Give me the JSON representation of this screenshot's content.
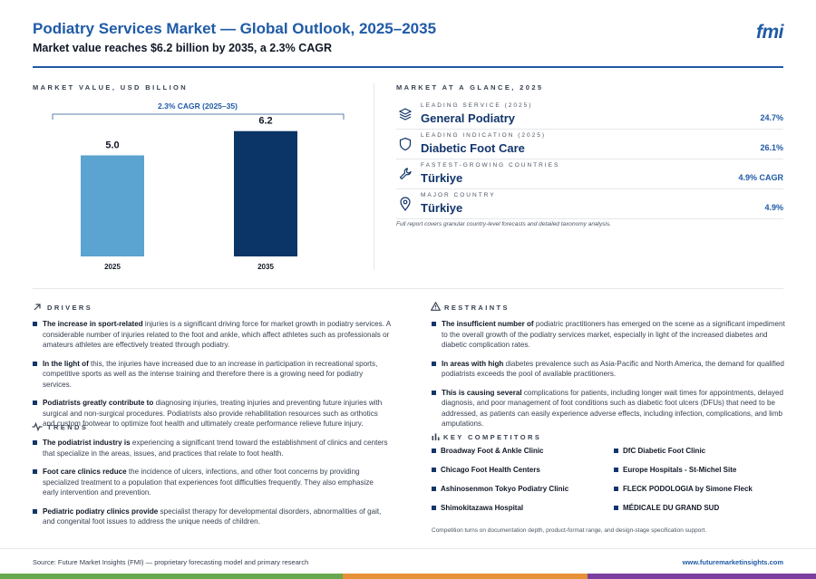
{
  "header": {
    "title": "Podiatry Services Market — Global Outlook, 2025–2035",
    "subtitle": "Market value reaches $6.2 billion by 2035, a 2.3% CAGR",
    "logo": "fmi"
  },
  "sections": {
    "market_value": "MARKET VALUE, USD BILLION",
    "glance": "MARKET AT A GLANCE, 2025",
    "drivers": "DRIVERS",
    "restraints": "RESTRAINTS",
    "trends": "TRENDS",
    "competitors": "KEY COMPETITORS"
  },
  "chart_data": {
    "type": "bar",
    "categories": [
      "2025",
      "2035"
    ],
    "values": [
      5.0,
      6.2
    ],
    "value_labels": [
      "5.0",
      "6.2"
    ],
    "bar_colors": [
      "#5ba3d0",
      "#0b3566"
    ],
    "annotation": "2.3% CAGR (2025–35)",
    "ylim": [
      0,
      6.5
    ],
    "grid": false
  },
  "glance": {
    "items": [
      {
        "label": "LEADING SERVICE (2025)",
        "value": "General Podiatry",
        "stat": "24.7%",
        "icon": "layers-icon"
      },
      {
        "label": "LEADING INDICATION (2025)",
        "value": "Diabetic Foot Care",
        "stat": "26.1%",
        "icon": "shield-icon"
      },
      {
        "label": "FASTEST-GROWING COUNTRIES",
        "value": "Türkiye",
        "stat": "4.9% CAGR",
        "icon": "wrench-icon"
      },
      {
        "label": "MAJOR COUNTRY",
        "value": "Türkiye",
        "stat": "4.9%",
        "icon": "location-pin-icon"
      }
    ],
    "note": "Full report covers granular country-level forecasts and detailed taxonomy analysis."
  },
  "drivers": [
    {
      "lead": "The increase in sport-related",
      "text": " injuries is a significant driving force for market growth in podiatry services. A considerable number of injuries related to the foot and ankle, which affect athletes such as professionals or amateurs athletes are effectively treated through podiatry."
    },
    {
      "lead": "In the light of",
      "text": " this, the injuries have increased due to an increase in participation in recreational sports, competitive sports as well as the intense training and therefore there is a growing need for podiatry services."
    },
    {
      "lead": "Podiatrists greatly contribute to",
      "text": " diagnosing injuries, treating injuries and preventing future injuries with surgical and non-surgical procedures. Podiatrists also provide rehabilitation resources such as orthotics and custom footwear to optimize foot health and ultimately create performance relieve future injury."
    }
  ],
  "trends": [
    {
      "lead": "The podiatrist industry is",
      "text": " experiencing a significant trend toward the establishment of clinics and centers that specialize in the areas, issues, and practices that relate to foot health."
    },
    {
      "lead": "Foot care clinics reduce",
      "text": " the incidence of ulcers, infections, and other foot concerns by providing specialized treatment to a population that experiences foot difficulties frequently. They also emphasize early intervention and prevention."
    },
    {
      "lead": "Pediatric podiatry clinics provide",
      "text": " specialist therapy for developmental disorders, abnormalities of gait, and congenital foot issues to address the unique needs of children."
    }
  ],
  "restraints": [
    {
      "lead": "The insufficient number of",
      "text": " podiatric practitioners has emerged on the scene as a significant impediment to the overall growth of the podiatry services market, especially in light of the increased diabetes and diabetic complication rates."
    },
    {
      "lead": "In areas with high",
      "text": " diabetes prevalence such as Asia-Pacific and North America, the demand for qualified podiatrists exceeds the pool of available practitioners."
    },
    {
      "lead": "This is causing several",
      "text": " complications for patients, including longer wait times for appointments, delayed diagnosis, and poor management of foot conditions such as diabetic foot ulcers (DFUs) that need to be addressed, as patients can easily experience adverse effects, including infection, complications, and limb amputations."
    }
  ],
  "competitors": {
    "items": [
      "Broadway Foot & Ankle Clinic",
      "DfC Diabetic Foot Clinic",
      "Chicago Foot Health Centers",
      "Europe Hospitals - St-Michel Site",
      "Ashinosenmon Tokyo Podiatry Clinic",
      "FLECK PODOLOGIA by Simone Fleck",
      "Shimokitazawa Hospital",
      "MÉDICALE DU GRAND SUD"
    ],
    "note": "Competition turns on documentation depth, product-format range, and design-stage specification support."
  },
  "footer": {
    "source": "Source: Future Market Insights (FMI) — proprietary forecasting model and primary research",
    "url": "www.futuremarketinsights.com",
    "strip_colors": [
      "#6aa84f",
      "#e69138",
      "#7b3fa0"
    ]
  }
}
